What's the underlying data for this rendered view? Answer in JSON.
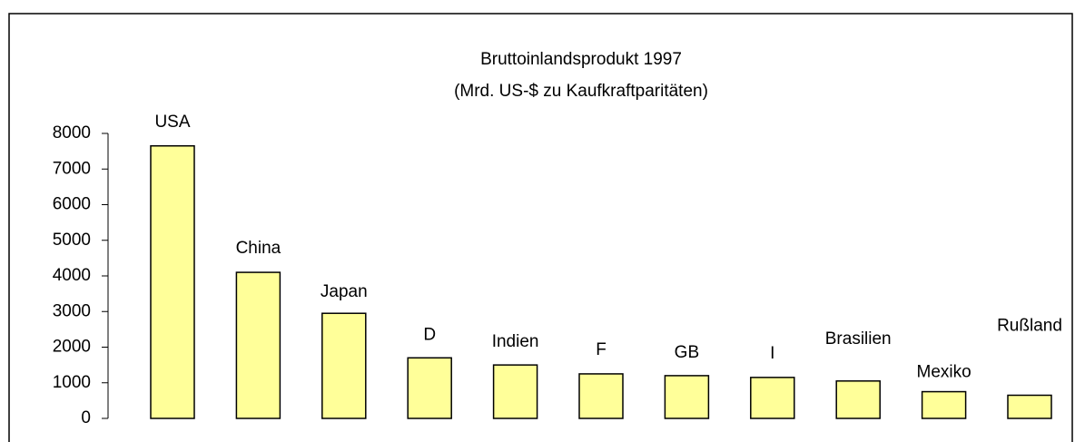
{
  "chart_data": {
    "type": "bar",
    "title": "Bruttoinlandsprodukt 1997",
    "subtitle": "(Mrd. US-$ zu Kaufkraftparitäten)",
    "categories": [
      "USA",
      "China",
      "Japan",
      "D",
      "Indien",
      "F",
      "GB",
      "I",
      "Brasilien",
      "Mexiko",
      "Rußland"
    ],
    "values": [
      7650,
      4100,
      2950,
      1700,
      1500,
      1250,
      1200,
      1150,
      1050,
      750,
      650
    ],
    "color": "#ffff99",
    "ylim": [
      0,
      8000
    ],
    "yticks": [
      0,
      1000,
      2000,
      3000,
      4000,
      5000,
      6000,
      7000,
      8000
    ],
    "grid": false
  }
}
